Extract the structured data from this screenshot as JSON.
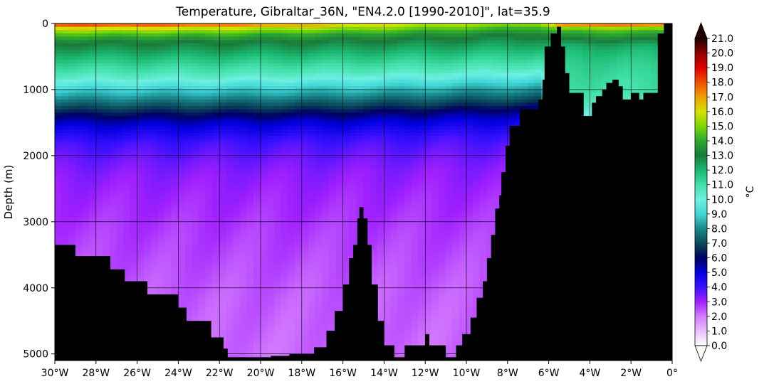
{
  "chart_data": {
    "type": "heatmap",
    "title": "Temperature, Gibraltar_36N, \"EN4.2.0 [1990-2010]\", lat=35.9",
    "ylabel": "Depth (m)",
    "xlabel": "",
    "colorbar_label": "°C",
    "xlim": [
      -30,
      0
    ],
    "ylim": [
      5100,
      0
    ],
    "x_ticks": [
      {
        "value": -30,
        "label": "30°W"
      },
      {
        "value": -28,
        "label": "28°W"
      },
      {
        "value": -26,
        "label": "26°W"
      },
      {
        "value": -24,
        "label": "24°W"
      },
      {
        "value": -22,
        "label": "22°W"
      },
      {
        "value": -20,
        "label": "20°W"
      },
      {
        "value": -18,
        "label": "18°W"
      },
      {
        "value": -16,
        "label": "16°W"
      },
      {
        "value": -14,
        "label": "14°W"
      },
      {
        "value": -12,
        "label": "12°W"
      },
      {
        "value": -10,
        "label": "10°W"
      },
      {
        "value": -8,
        "label": "8°W"
      },
      {
        "value": -6,
        "label": "6°W"
      },
      {
        "value": -4,
        "label": "4°W"
      },
      {
        "value": -2,
        "label": "2°W"
      },
      {
        "value": 0,
        "label": "0°"
      }
    ],
    "y_ticks": [
      {
        "value": 0,
        "label": "0"
      },
      {
        "value": 1000,
        "label": "1000"
      },
      {
        "value": 2000,
        "label": "2000"
      },
      {
        "value": 3000,
        "label": "3000"
      },
      {
        "value": 4000,
        "label": "4000"
      },
      {
        "value": 5000,
        "label": "5000"
      }
    ],
    "colorbar": {
      "min": 0,
      "max": 21,
      "extend": "both",
      "tick_labels": [
        "0.0",
        "1.0",
        "2.0",
        "3.0",
        "4.0",
        "5.0",
        "6.0",
        "7.0",
        "8.0",
        "9.0",
        "10.0",
        "11.0",
        "12.0",
        "13.0",
        "14.0",
        "15.0",
        "16.0",
        "17.0",
        "18.0",
        "19.0",
        "20.0",
        "21.0"
      ],
      "colors": [
        {
          "t": 0,
          "c": "#ffffff"
        },
        {
          "t": 2,
          "c": "#d47cff"
        },
        {
          "t": 3,
          "c": "#a020ff"
        },
        {
          "t": 4,
          "c": "#3a10ff"
        },
        {
          "t": 5,
          "c": "#0000e0"
        },
        {
          "t": 6,
          "c": "#000060"
        },
        {
          "t": 7,
          "c": "#0a4a5a"
        },
        {
          "t": 8,
          "c": "#1a8a8f"
        },
        {
          "t": 9,
          "c": "#40d6d6"
        },
        {
          "t": 10,
          "c": "#6ef0e0"
        },
        {
          "t": 11,
          "c": "#40e0a8"
        },
        {
          "t": 12,
          "c": "#1ab870"
        },
        {
          "t": 13,
          "c": "#1a7a3a"
        },
        {
          "t": 14,
          "c": "#2ca830"
        },
        {
          "t": 15,
          "c": "#7ad800"
        },
        {
          "t": 16,
          "c": "#d8e000"
        },
        {
          "t": 17,
          "c": "#f0a000"
        },
        {
          "t": 18,
          "c": "#f05000"
        },
        {
          "t": 19,
          "c": "#e00000"
        },
        {
          "t": 20,
          "c": "#900000"
        },
        {
          "t": 21,
          "c": "#200000"
        }
      ]
    },
    "profile": {
      "depth": [
        0,
        20,
        60,
        100,
        200,
        300,
        400,
        600,
        800,
        1000,
        1100,
        1200,
        1300,
        1400,
        1500,
        1600,
        1800,
        2000,
        2300,
        2600,
        3000,
        3500,
        4000,
        5000
      ],
      "temp_west": [
        20.0,
        18.0,
        16.5,
        15.5,
        14.0,
        13.0,
        12.5,
        11.5,
        10.5,
        9.0,
        8.3,
        7.5,
        6.8,
        6.0,
        5.3,
        4.8,
        4.0,
        3.6,
        3.2,
        3.0,
        2.8,
        2.6,
        2.4,
        2.2
      ],
      "temp_east": [
        20.5,
        17.5,
        15.5,
        14.5,
        13.5,
        12.5,
        12.0,
        11.5,
        11.2,
        11.0,
        10.8,
        10.5,
        10.2,
        9.8,
        8.5,
        6.5,
        4.5,
        3.8,
        3.3,
        3.0,
        2.8,
        2.6,
        2.4,
        2.2
      ]
    },
    "seafloor": [
      [
        -30.0,
        3350
      ],
      [
        -29.0,
        3350
      ],
      [
        -29.0,
        3520
      ],
      [
        -27.3,
        3520
      ],
      [
        -27.3,
        3720
      ],
      [
        -26.6,
        3720
      ],
      [
        -26.6,
        3900
      ],
      [
        -25.5,
        3900
      ],
      [
        -25.5,
        4100
      ],
      [
        -24.0,
        4100
      ],
      [
        -24.0,
        4300
      ],
      [
        -23.6,
        4300
      ],
      [
        -23.6,
        4500
      ],
      [
        -22.4,
        4500
      ],
      [
        -22.4,
        4750
      ],
      [
        -21.8,
        4750
      ],
      [
        -21.8,
        4920
      ],
      [
        -21.6,
        4920
      ],
      [
        -21.6,
        5050
      ],
      [
        -19.5,
        5050
      ],
      [
        -19.5,
        5030
      ],
      [
        -18.6,
        5030
      ],
      [
        -18.6,
        5000
      ],
      [
        -17.4,
        5000
      ],
      [
        -17.4,
        4900
      ],
      [
        -16.8,
        4900
      ],
      [
        -16.8,
        4650
      ],
      [
        -16.4,
        4650
      ],
      [
        -16.4,
        4350
      ],
      [
        -16.0,
        4350
      ],
      [
        -16.0,
        3950
      ],
      [
        -15.7,
        3950
      ],
      [
        -15.7,
        3550
      ],
      [
        -15.5,
        3550
      ],
      [
        -15.5,
        3350
      ],
      [
        -15.3,
        3350
      ],
      [
        -15.3,
        2950
      ],
      [
        -15.2,
        2950
      ],
      [
        -15.2,
        2780
      ],
      [
        -15.0,
        2780
      ],
      [
        -15.0,
        2950
      ],
      [
        -14.8,
        2950
      ],
      [
        -14.8,
        3350
      ],
      [
        -14.6,
        3350
      ],
      [
        -14.6,
        3950
      ],
      [
        -14.3,
        3950
      ],
      [
        -14.3,
        4500
      ],
      [
        -14.0,
        4500
      ],
      [
        -14.0,
        4870
      ],
      [
        -13.5,
        4870
      ],
      [
        -13.5,
        5050
      ],
      [
        -13.0,
        5050
      ],
      [
        -13.0,
        4870
      ],
      [
        -12.0,
        4870
      ],
      [
        -12.0,
        4700
      ],
      [
        -11.8,
        4700
      ],
      [
        -11.8,
        4870
      ],
      [
        -11.0,
        4870
      ],
      [
        -11.0,
        5050
      ],
      [
        -10.5,
        5050
      ],
      [
        -10.5,
        4870
      ],
      [
        -10.2,
        4870
      ],
      [
        -10.2,
        4700
      ],
      [
        -9.8,
        4700
      ],
      [
        -9.8,
        4450
      ],
      [
        -9.5,
        4450
      ],
      [
        -9.5,
        4150
      ],
      [
        -9.2,
        4150
      ],
      [
        -9.2,
        3900
      ],
      [
        -9.0,
        3900
      ],
      [
        -9.0,
        3550
      ],
      [
        -8.8,
        3550
      ],
      [
        -8.8,
        3200
      ],
      [
        -8.6,
        3200
      ],
      [
        -8.6,
        2800
      ],
      [
        -8.4,
        2800
      ],
      [
        -8.4,
        2600
      ],
      [
        -8.3,
        2600
      ],
      [
        -8.3,
        2250
      ],
      [
        -8.1,
        2250
      ],
      [
        -8.1,
        1850
      ],
      [
        -7.9,
        1850
      ],
      [
        -7.9,
        1550
      ],
      [
        -7.4,
        1550
      ],
      [
        -7.4,
        1300
      ],
      [
        -6.5,
        1300
      ],
      [
        -6.5,
        1150
      ],
      [
        -6.3,
        1150
      ],
      [
        -6.3,
        850
      ],
      [
        -6.2,
        850
      ],
      [
        -6.2,
        350
      ],
      [
        -5.9,
        350
      ],
      [
        -5.9,
        150
      ],
      [
        -5.6,
        150
      ],
      [
        -5.6,
        50
      ],
      [
        -5.4,
        50
      ],
      [
        -5.4,
        350
      ],
      [
        -5.2,
        350
      ],
      [
        -5.2,
        750
      ],
      [
        -5.0,
        750
      ],
      [
        -5.0,
        1050
      ],
      [
        -4.3,
        1050
      ],
      [
        -4.3,
        1400
      ],
      [
        -3.9,
        1400
      ],
      [
        -3.9,
        1200
      ],
      [
        -3.7,
        1200
      ],
      [
        -3.7,
        1100
      ],
      [
        -3.4,
        1100
      ],
      [
        -3.4,
        1000
      ],
      [
        -3.2,
        1000
      ],
      [
        -3.2,
        900
      ],
      [
        -2.9,
        900
      ],
      [
        -2.9,
        850
      ],
      [
        -2.6,
        850
      ],
      [
        -2.6,
        950
      ],
      [
        -2.4,
        950
      ],
      [
        -2.4,
        1150
      ],
      [
        -2.0,
        1150
      ],
      [
        -2.0,
        1050
      ],
      [
        -1.6,
        1050
      ],
      [
        -1.6,
        1150
      ],
      [
        -1.4,
        1150
      ],
      [
        -1.4,
        1050
      ],
      [
        -0.7,
        1050
      ],
      [
        -0.7,
        150
      ],
      [
        -0.4,
        150
      ],
      [
        -0.4,
        0
      ],
      [
        0.0,
        0
      ]
    ]
  }
}
